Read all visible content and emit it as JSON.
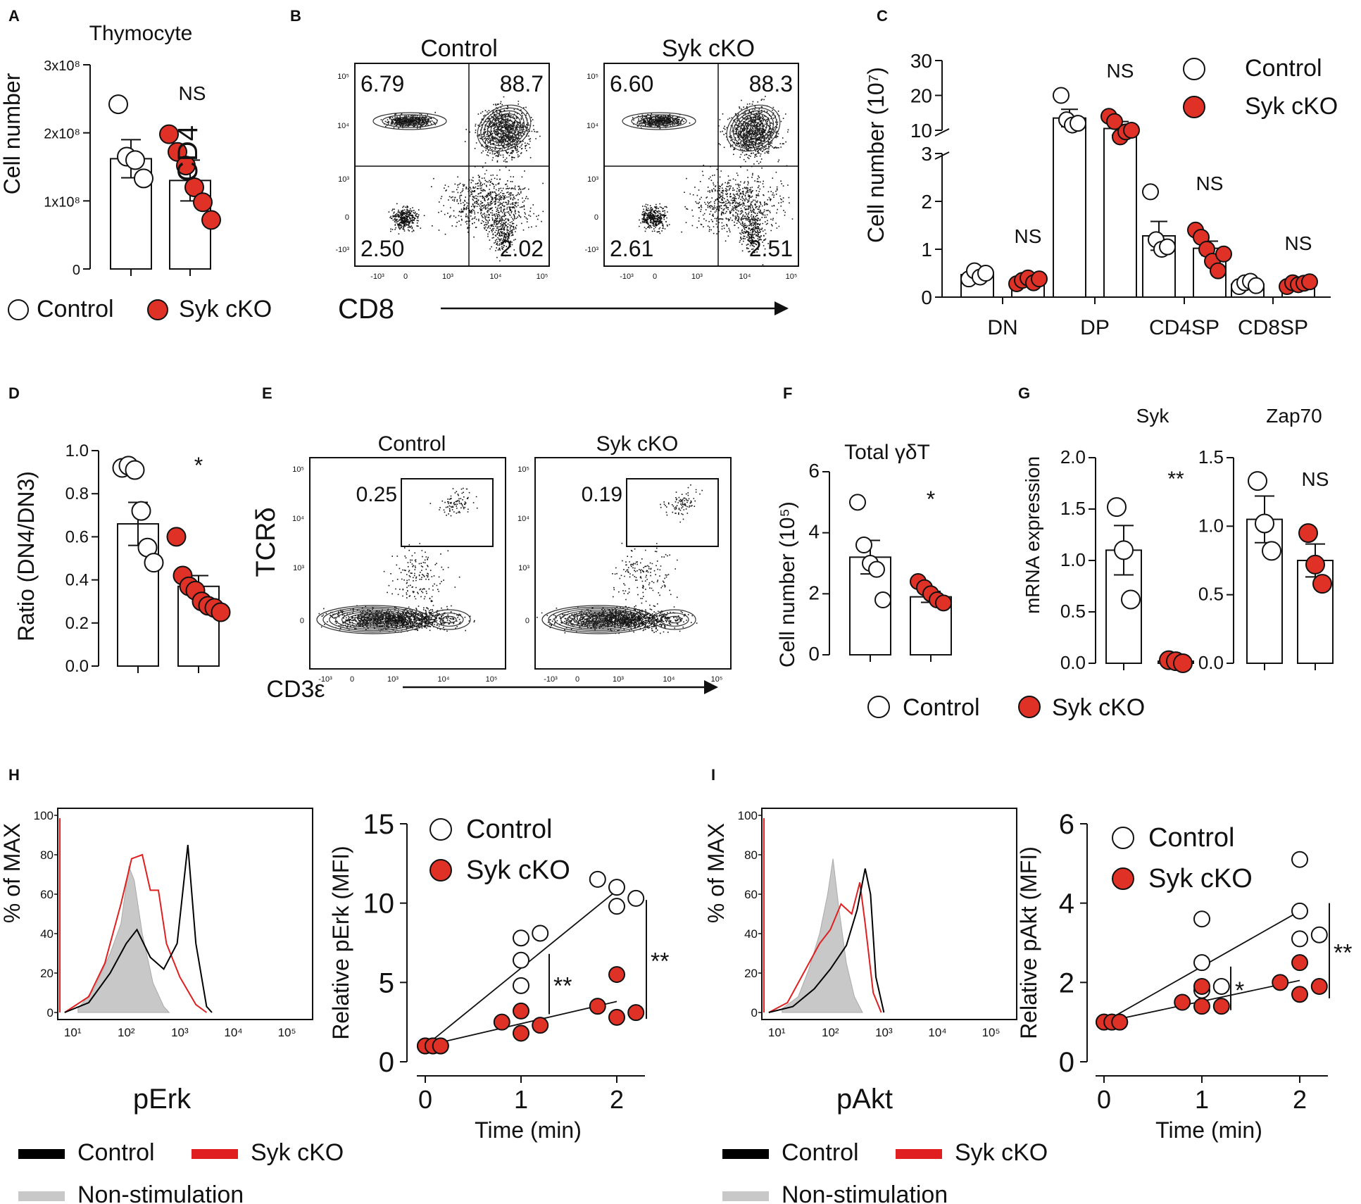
{
  "panels": {
    "A": {
      "letter": "A",
      "title": "Thymocyte",
      "ylabel": "Cell number",
      "ticks": [
        "0",
        "1x10⁸",
        "2x10⁸",
        "3x10⁸"
      ],
      "sig": "NS",
      "legend": [
        "Control",
        "Syk cKO"
      ]
    },
    "B": {
      "letter": "B",
      "titles": [
        "Control",
        "Syk cKO"
      ],
      "ylabel": "CD4",
      "xlabel": "CD8",
      "quadrants": [
        [
          "6.79",
          "88.7",
          "2.50",
          "2.02"
        ],
        [
          "6.60",
          "88.3",
          "2.61",
          "2.51"
        ]
      ],
      "yticks": [
        "10⁵",
        "10⁴",
        "10³",
        "0",
        "-10³"
      ],
      "xticks": [
        "-10³",
        "0",
        "10³",
        "10⁴",
        "10⁵"
      ]
    },
    "C": {
      "letter": "C",
      "ylabel": "Cell number (10⁷)",
      "categories": [
        "DN",
        "DP",
        "CD4SP",
        "CD8SP"
      ],
      "sig": [
        "NS",
        "NS",
        "NS",
        "NS"
      ],
      "ticks_low": [
        "0",
        "1",
        "2",
        "3"
      ],
      "ticks_high": [
        "10",
        "20",
        "30"
      ],
      "legend": [
        "Control",
        "Syk cKO"
      ]
    },
    "D": {
      "letter": "D",
      "ylabel": "Ratio (DN4/DN3)",
      "ticks": [
        "0.0",
        "0.2",
        "0.4",
        "0.6",
        "0.8",
        "1.0"
      ],
      "sig": "*"
    },
    "E": {
      "letter": "E",
      "titles": [
        "Control",
        "Syk cKO"
      ],
      "ylabel": "TCRδ",
      "xlabel": "CD3ε",
      "gates": [
        "0.25",
        "0.19"
      ],
      "yticks": [
        "10⁵",
        "10⁴",
        "10³",
        "0"
      ],
      "xticks": [
        "-10³",
        "0",
        "10³",
        "10⁴",
        "10⁵"
      ]
    },
    "F": {
      "letter": "F",
      "title": "Total γδT",
      "ylabel": "Cell number (10⁵)",
      "ticks": [
        "0",
        "2",
        "4",
        "6"
      ],
      "sig": "*"
    },
    "G": {
      "letter": "G",
      "ylabel": "mRNA expression",
      "titles": [
        "Syk",
        "Zap70"
      ],
      "ticks1": [
        "0.0",
        "0.5",
        "1.0",
        "1.5",
        "2.0"
      ],
      "ticks2": [
        "0.0",
        "0.5",
        "1.0",
        "1.5"
      ],
      "sig": [
        "**",
        "NS"
      ],
      "legend": [
        "Control",
        "Syk cKO"
      ]
    },
    "H": {
      "letter": "H",
      "ylabel": "% of MAX",
      "xlabel": "pErk",
      "yticks": [
        "0",
        "20",
        "40",
        "60",
        "80",
        "100"
      ],
      "xticks": [
        "10¹",
        "10²",
        "10³",
        "10⁴",
        "10⁵"
      ],
      "legend": [
        "Control",
        "Syk cKO",
        "Non-stimulation"
      ],
      "scatter": {
        "ylabel": "Relative pErk (MFI)",
        "xlabel": "Time (min)",
        "ticks": [
          "0",
          "5",
          "10",
          "15"
        ],
        "xticks": [
          "0",
          "1",
          "2"
        ],
        "sig": [
          "**",
          "**"
        ],
        "legend": [
          "Control",
          "Syk cKO"
        ]
      }
    },
    "I": {
      "letter": "I",
      "ylabel": "% of MAX",
      "xlabel": "pAkt",
      "yticks": [
        "0",
        "20",
        "40",
        "60",
        "80",
        "100"
      ],
      "xticks": [
        "10¹",
        "10²",
        "10³",
        "10⁴",
        "10⁵"
      ],
      "legend": [
        "Control",
        "Syk cKO",
        "Non-stimulation"
      ],
      "scatter": {
        "ylabel": "Relative pAkt (MFI)",
        "xlabel": "Time (min)",
        "ticks": [
          "0",
          "2",
          "4",
          "6"
        ],
        "xticks": [
          "0",
          "1",
          "2"
        ],
        "sig": [
          "*",
          "**"
        ],
        "legend": [
          "Control",
          "Syk cKO"
        ]
      }
    }
  },
  "colors": {
    "control_fill": "#ffffff",
    "syk_fill": "#e03127",
    "nonstim": "#c8c8c8",
    "line": "#111111",
    "red_line": "#e02020"
  },
  "chart_data": [
    {
      "panel": "A",
      "type": "bar",
      "title": "Thymocyte",
      "ylabel": "Cell number",
      "ylim": [
        0,
        300000000.0
      ],
      "categories": [
        "Control",
        "Syk cKO"
      ],
      "values": [
        162000000.0,
        130000000.0
      ],
      "errors": [
        28000000.0,
        30000000.0
      ],
      "points": [
        [
          242000000.0,
          165000000.0,
          160000000.0,
          133000000.0
        ],
        [
          198000000.0,
          172000000.0,
          152000000.0,
          120000000.0,
          98000000.0,
          72000000.0
        ]
      ]
    },
    {
      "panel": "C",
      "type": "bar",
      "ylabel": "Cell number (10^7)",
      "categories": [
        "DN",
        "DP",
        "CD4SP",
        "CD8SP"
      ],
      "series": [
        {
          "name": "Control",
          "values": [
            0.47,
            13.5,
            1.28,
            0.27
          ],
          "errors": [
            0.1,
            2.5,
            0.3,
            0.05
          ]
        },
        {
          "name": "Syk cKO",
          "values": [
            0.33,
            10.5,
            1.02,
            0.26
          ],
          "errors": [
            0.06,
            2,
            0.15,
            0.04
          ]
        }
      ],
      "points": {
        "Control": [
          [
            0.38,
            0.55,
            0.42,
            0.5
          ],
          [
            20,
            13,
            11.5,
            12
          ],
          [
            2.2,
            1.2,
            1.0,
            1.05
          ],
          [
            0.22,
            0.3,
            0.33,
            0.24
          ]
        ],
        "Syk cKO": [
          [
            0.28,
            0.35,
            0.4,
            0.3,
            0.38
          ],
          [
            14,
            12.5,
            8,
            9.5,
            10
          ],
          [
            1.4,
            1.25,
            1.0,
            0.75,
            0.55,
            0.9
          ],
          [
            0.22,
            0.3,
            0.26,
            0.29,
            0.32
          ]
        ]
      }
    },
    {
      "panel": "D",
      "type": "bar",
      "ylabel": "Ratio (DN4/DN3)",
      "ylim": [
        0,
        1
      ],
      "categories": [
        "Control",
        "Syk cKO"
      ],
      "values": [
        0.66,
        0.37
      ],
      "errors": [
        0.1,
        0.05
      ],
      "points": [
        [
          0.92,
          0.93,
          0.91,
          0.72,
          0.55,
          0.48
        ],
        [
          0.6,
          0.42,
          0.37,
          0.35,
          0.3,
          0.28,
          0.27,
          0.25
        ]
      ]
    },
    {
      "panel": "F",
      "type": "bar",
      "title": "Total γδT",
      "ylabel": "Cell number (10^5)",
      "ylim": [
        0,
        6
      ],
      "categories": [
        "Control",
        "Syk cKO"
      ],
      "values": [
        3.2,
        1.9
      ],
      "errors": [
        0.55,
        0.18
      ],
      "points": [
        [
          5.0,
          3.6,
          3.0,
          2.8,
          1.8
        ],
        [
          2.4,
          2.2,
          2.0,
          1.8,
          1.7
        ]
      ]
    },
    {
      "panel": "G",
      "type": "bar",
      "title": "Syk",
      "ylabel": "mRNA expression",
      "ylim": [
        0,
        2
      ],
      "categories": [
        "Control",
        "Syk cKO"
      ],
      "values": [
        1.1,
        0.02
      ],
      "errors": [
        0.24,
        0.01
      ],
      "points": [
        [
          1.52,
          1.1,
          0.62
        ],
        [
          0.03,
          0.02,
          0.0
        ]
      ]
    },
    {
      "panel": "G",
      "type": "bar",
      "title": "Zap70",
      "ylabel": "mRNA expression",
      "ylim": [
        0,
        1.5
      ],
      "categories": [
        "Control",
        "Syk cKO"
      ],
      "values": [
        1.05,
        0.75
      ],
      "errors": [
        0.17,
        0.12
      ],
      "points": [
        [
          1.33,
          1.02,
          0.82
        ],
        [
          0.95,
          0.72,
          0.58
        ]
      ]
    },
    {
      "panel": "H",
      "type": "scatter",
      "ylabel": "Relative pErk (MFI)",
      "xlabel": "Time (min)",
      "ylim": [
        0,
        15
      ],
      "xlim": [
        0,
        2.3
      ],
      "series": [
        {
          "name": "Control",
          "points": [
            [
              0,
              1
            ],
            [
              0.08,
              1
            ],
            [
              0.16,
              1
            ],
            [
              1,
              7.8
            ],
            [
              1.2,
              8.1
            ],
            [
              1,
              6.4
            ],
            [
              1,
              4.8
            ],
            [
              1.8,
              11.5
            ],
            [
              2,
              11
            ],
            [
              2.2,
              10.3
            ],
            [
              2,
              9.8
            ]
          ],
          "fit": [
            [
              0,
              1
            ],
            [
              2,
              10.8
            ]
          ]
        },
        {
          "name": "Syk cKO",
          "points": [
            [
              0,
              1
            ],
            [
              0.08,
              1
            ],
            [
              0.16,
              1
            ],
            [
              0.8,
              2.5
            ],
            [
              1,
              3.2
            ],
            [
              1,
              1.8
            ],
            [
              1.2,
              2.3
            ],
            [
              1.8,
              3.5
            ],
            [
              2,
              5.5
            ],
            [
              2,
              2.8
            ],
            [
              2.2,
              3.1
            ]
          ],
          "fit": [
            [
              0,
              1
            ],
            [
              2,
              3.8
            ]
          ]
        }
      ]
    },
    {
      "panel": "I",
      "type": "scatter",
      "ylabel": "Relative pAkt (MFI)",
      "xlabel": "Time (min)",
      "ylim": [
        0,
        6
      ],
      "xlim": [
        0,
        2.3
      ],
      "series": [
        {
          "name": "Control",
          "points": [
            [
              0,
              1
            ],
            [
              0.08,
              1
            ],
            [
              0.16,
              1
            ],
            [
              1,
              3.6
            ],
            [
              1,
              2.5
            ],
            [
              1,
              1.8
            ],
            [
              1.2,
              1.9
            ],
            [
              2,
              5.1
            ],
            [
              2,
              3.8
            ],
            [
              2,
              3.1
            ],
            [
              2.2,
              3.2
            ]
          ],
          "fit": [
            [
              0,
              1
            ],
            [
              2,
              3.8
            ]
          ]
        },
        {
          "name": "Syk cKO",
          "points": [
            [
              0,
              1
            ],
            [
              0.08,
              1
            ],
            [
              0.16,
              1
            ],
            [
              0.8,
              1.5
            ],
            [
              1,
              1.9
            ],
            [
              1,
              1.4
            ],
            [
              1.2,
              1.4
            ],
            [
              1.8,
              2
            ],
            [
              2,
              2.5
            ],
            [
              2,
              1.7
            ],
            [
              2.2,
              1.9
            ]
          ],
          "fit": [
            [
              0,
              1
            ],
            [
              2,
              2.05
            ]
          ]
        }
      ]
    }
  ]
}
